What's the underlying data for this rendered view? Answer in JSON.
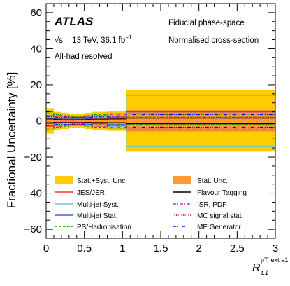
{
  "header": {
    "brand": "ATLAS",
    "energy_prefix": "√s = 13 TeV, 36.1 fb",
    "energy_sup": "−1",
    "selection": "All-had resolved",
    "phase_space": "Fiducial phase-space",
    "normalisation": "Normalised cross-section"
  },
  "axes": {
    "ylabel": "Fractional Uncertainty [%]",
    "xlabel_main": "R",
    "xlabel_sub": "t,1",
    "xlabel_sup": "pT, extra1"
  },
  "legend": {
    "items": [
      {
        "key": "stat_syst",
        "label": "Stat.+Syst. Unc.",
        "color": "#ffcc00",
        "style": "box"
      },
      {
        "key": "stat",
        "label": "Stat. Unc.",
        "color": "#ff9933",
        "style": "box"
      },
      {
        "key": "jes",
        "label": "JES/JER",
        "color": "#ff3333",
        "style": "solid"
      },
      {
        "key": "flav",
        "label": "Flavour Tagging",
        "color": "#000000",
        "style": "solid"
      },
      {
        "key": "mjsyst",
        "label": "Multi-jet Syst.",
        "color": "#66cccc",
        "style": "solid"
      },
      {
        "key": "isr",
        "label": "ISR, PDF",
        "color": "#cc33cc",
        "style": "dashdot"
      },
      {
        "key": "mjstat",
        "label": "Multi-jet Stat.",
        "color": "#3366cc",
        "style": "solid"
      },
      {
        "key": "mcstat",
        "label": "MC signal stat.",
        "color": "#cc0000",
        "style": "dotted"
      },
      {
        "key": "ps",
        "label": "PS/Hadronisation",
        "color": "#009900",
        "style": "dashed"
      },
      {
        "key": "me",
        "label": "ME Generator",
        "color": "#0000cc",
        "style": "dashdotdot"
      }
    ]
  },
  "chart_data": {
    "type": "bar",
    "xlim": [
      0,
      3
    ],
    "ylim": [
      -65,
      65
    ],
    "x_ticks": [
      "0",
      "0.5",
      "1",
      "1.5",
      "2",
      "2.5",
      "3"
    ],
    "y_ticks": [
      "−60",
      "−40",
      "−20",
      "0",
      "20",
      "40",
      "60"
    ],
    "bin_edges": [
      0,
      0.1,
      0.2,
      0.3,
      0.4,
      0.5,
      0.6,
      0.8,
      1.05,
      3.0
    ],
    "series": [
      {
        "name": "Stat.+Syst. Unc.",
        "key": "stat_syst",
        "values": [
          7,
          5,
          4.5,
          4,
          4,
          4.5,
          5,
          5.5,
          17
        ]
      },
      {
        "name": "Stat. Unc.",
        "key": "stat",
        "values": [
          2.5,
          2,
          1.8,
          1.8,
          2,
          2.2,
          2.5,
          3,
          6
        ]
      },
      {
        "name": "JES/JER",
        "key": "jes",
        "values": [
          3,
          2.5,
          2,
          2,
          2,
          2.2,
          2.5,
          3,
          5
        ]
      },
      {
        "name": "Flavour Tagging",
        "key": "flav",
        "values": [
          1,
          0.8,
          0.8,
          0.8,
          0.8,
          0.8,
          0.9,
          1,
          1.5
        ]
      },
      {
        "name": "Multi-jet Syst.",
        "key": "mjsyst",
        "values": [
          2.5,
          2,
          1.8,
          1.5,
          1.5,
          2,
          2.5,
          3,
          14
        ]
      },
      {
        "name": "ISR, PDF",
        "key": "isr",
        "values": [
          4,
          3,
          2.5,
          2,
          2,
          2.5,
          3,
          3.5,
          4
        ]
      },
      {
        "name": "Multi-jet Stat.",
        "key": "mjstat",
        "values": [
          1.5,
          1.2,
          1,
          1,
          1,
          1.2,
          1.5,
          2,
          5
        ]
      },
      {
        "name": "MC signal stat.",
        "key": "mcstat",
        "values": [
          1,
          0.8,
          0.7,
          0.7,
          0.8,
          0.9,
          1,
          1.2,
          2
        ]
      },
      {
        "name": "PS/Hadronisation",
        "key": "ps",
        "values": [
          5,
          3.5,
          3,
          2.5,
          2.5,
          3,
          3.5,
          4,
          2
        ]
      },
      {
        "name": "ME Generator",
        "key": "me",
        "values": [
          2.5,
          2,
          2,
          1.8,
          1.8,
          2,
          2.2,
          2.5,
          3.5
        ]
      }
    ]
  }
}
